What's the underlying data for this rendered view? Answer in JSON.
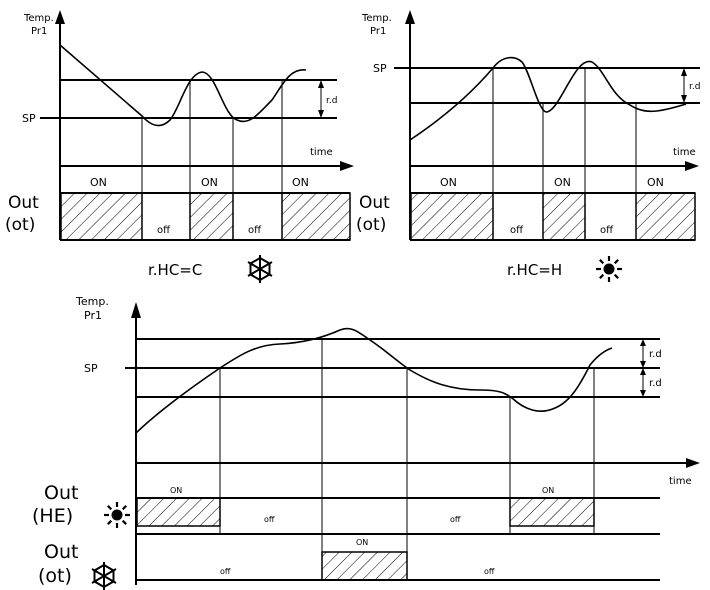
{
  "cooling": {
    "ylabel": [
      "Temp.",
      "Pr1"
    ],
    "sp": "SP",
    "rd": "r.d",
    "time": "time",
    "out": [
      "Out",
      "(ot)"
    ],
    "on": [
      "ON",
      "ON",
      "ON"
    ],
    "off": [
      "off",
      "off"
    ],
    "mode": "r.HC=C",
    "mode_icon": "snowflake-icon"
  },
  "heating": {
    "ylabel": [
      "Temp.",
      "Pr1"
    ],
    "sp": "SP",
    "rd": "r.d",
    "time": "time",
    "out": [
      "Out",
      "(ot)"
    ],
    "on": [
      "ON",
      "ON",
      "ON"
    ],
    "off": [
      "off",
      "off"
    ],
    "mode": "r.HC=H",
    "mode_icon": "sun-icon"
  },
  "neutral": {
    "ylabel": [
      "Temp.",
      "Pr1"
    ],
    "sp": "SP",
    "rd": [
      "r.d",
      "r.d"
    ],
    "time": "time",
    "out_he": [
      "Out",
      "(HE)"
    ],
    "he_icon": "sun-icon",
    "out_ot": [
      "Out",
      "(ot)"
    ],
    "ot_icon": "snowflake-icon",
    "he_on": [
      "ON",
      "ON"
    ],
    "he_off": [
      "off",
      "off"
    ],
    "ot_on": "ON",
    "ot_off": [
      "off",
      "off"
    ]
  }
}
